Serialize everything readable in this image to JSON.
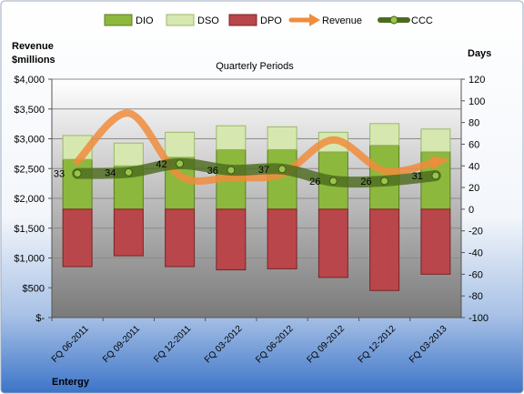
{
  "chart_data": {
    "type": "bar",
    "title": "Quarterly Periods",
    "company": "Entergy",
    "left_axis_label_line1": "Revenue",
    "left_axis_label_line2": "$millions",
    "right_axis_label": "Days",
    "categories": [
      "FQ 06-2011",
      "FQ 09-2011",
      "FQ 12-2011",
      "FQ 03-2012",
      "FQ 06-2012",
      "FQ 09-2012",
      "FQ 12-2012",
      "FQ 03-2013"
    ],
    "left_axis": {
      "min": 0,
      "max": 4000,
      "step": 500,
      "tick_labels": [
        "$-",
        "$500",
        "$1,000",
        "$1,500",
        "$2,000",
        "$2,500",
        "$3,000",
        "$3,500",
        "$4,000"
      ]
    },
    "right_axis": {
      "min": -100,
      "max": 120,
      "step": 20
    },
    "series": [
      {
        "name": "DIO",
        "axis": "right",
        "color": "#8db83e",
        "values": [
          46,
          40,
          48,
          55,
          55,
          53,
          59,
          53
        ]
      },
      {
        "name": "DSO",
        "axis": "right",
        "color": "#d6e8b0",
        "values": [
          22,
          21,
          23,
          22,
          21,
          18,
          20,
          21
        ]
      },
      {
        "name": "DPO",
        "axis": "right",
        "color": "#b9464a",
        "values": [
          -53,
          -43,
          -53,
          -56,
          -55,
          -63,
          -75,
          -60
        ]
      },
      {
        "name": "Revenue",
        "axis": "left",
        "color": "#f08c3c",
        "values": [
          2620,
          3430,
          2380,
          2350,
          2410,
          2980,
          2460,
          2610
        ]
      },
      {
        "name": "CCC",
        "axis": "right",
        "color": "#4d6b1e",
        "values": [
          33,
          34,
          42,
          36,
          37,
          26,
          26,
          31
        ]
      }
    ],
    "ccc_labels": [
      "33",
      "34",
      "42",
      "36",
      "37",
      "26",
      "26",
      "31"
    ],
    "legend_position": "top"
  }
}
